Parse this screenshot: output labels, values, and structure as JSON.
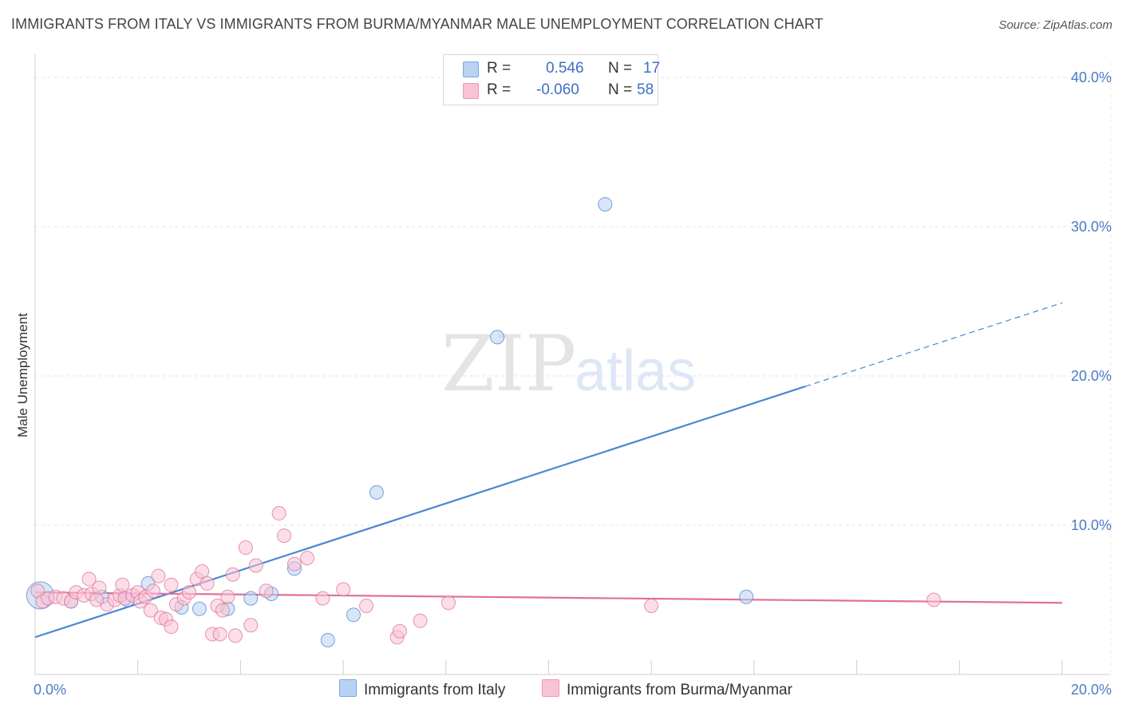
{
  "title": "IMMIGRANTS FROM ITALY VS IMMIGRANTS FROM BURMA/MYANMAR MALE UNEMPLOYMENT CORRELATION CHART",
  "source": "Source: ZipAtlas.com",
  "watermark": {
    "zip": "ZIP",
    "atlas": "atlas"
  },
  "legend": {
    "rows": [
      {
        "r_label": "R =",
        "r_value": "0.546",
        "n_label": "N =",
        "n_value": "17",
        "color": "#b8d2f3"
      },
      {
        "r_label": "R =",
        "r_value": "-0.060",
        "n_label": "N =",
        "n_value": "58",
        "color": "#f8c3d3"
      }
    ]
  },
  "bottom_legend": [
    {
      "label": "Immigrants from Italy",
      "color": "#b8d2f3"
    },
    {
      "label": "Immigrants from Burma/Myanmar",
      "color": "#f8c3d3"
    }
  ],
  "chart_data": {
    "type": "scatter",
    "title": "IMMIGRANTS FROM ITALY VS IMMIGRANTS FROM BURMA/MYANMAR MALE UNEMPLOYMENT CORRELATION CHART",
    "xlabel": "",
    "ylabel": "Male Unemployment",
    "xlim": [
      0,
      20
    ],
    "ylim": [
      0,
      40
    ],
    "x_tick_labels": [
      {
        "value": 0,
        "label": "0.0%"
      },
      {
        "value": 20,
        "label": "20.0%"
      }
    ],
    "y_tick_labels": [
      {
        "value": 10,
        "label": "10.0%"
      },
      {
        "value": 20,
        "label": "20.0%"
      },
      {
        "value": 30,
        "label": "30.0%"
      },
      {
        "value": 40,
        "label": "40.0%"
      }
    ],
    "grid": true,
    "series": [
      {
        "name": "Immigrants from Italy",
        "color": "#4a86d6",
        "fill": "#b8d2f3",
        "points": [
          [
            0.1,
            5.3
          ],
          [
            0.7,
            4.9
          ],
          [
            1.3,
            5.2
          ],
          [
            1.8,
            5.0
          ],
          [
            2.2,
            6.1
          ],
          [
            2.85,
            4.5
          ],
          [
            3.2,
            4.4
          ],
          [
            3.75,
            4.4
          ],
          [
            4.2,
            5.1
          ],
          [
            4.6,
            5.4
          ],
          [
            5.05,
            7.1
          ],
          [
            5.7,
            2.3
          ],
          [
            6.2,
            4.0
          ],
          [
            6.65,
            12.2
          ],
          [
            9.0,
            22.6
          ],
          [
            11.1,
            31.5
          ],
          [
            13.85,
            5.2
          ]
        ],
        "trend": {
          "x0": 0,
          "y0": 2.5,
          "x1": 15.0,
          "y1": 19.3,
          "x_dash_end": 20.0,
          "y_dash_end": 24.9
        }
      },
      {
        "name": "Immigrants from Burma/Myanmar",
        "color": "#e0709a",
        "fill": "#f8c3d3",
        "points": [
          [
            0.05,
            5.6
          ],
          [
            0.15,
            4.9
          ],
          [
            0.25,
            5.1
          ],
          [
            0.4,
            5.2
          ],
          [
            0.55,
            5.1
          ],
          [
            0.7,
            4.9
          ],
          [
            0.8,
            5.5
          ],
          [
            0.95,
            5.3
          ],
          [
            1.1,
            5.4
          ],
          [
            1.25,
            5.8
          ],
          [
            1.05,
            6.4
          ],
          [
            1.4,
            4.7
          ],
          [
            1.55,
            5.0
          ],
          [
            1.65,
            5.3
          ],
          [
            1.75,
            5.1
          ],
          [
            1.9,
            5.3
          ],
          [
            2.0,
            5.5
          ],
          [
            1.7,
            6.0
          ],
          [
            2.05,
            4.9
          ],
          [
            2.15,
            5.2
          ],
          [
            2.3,
            5.6
          ],
          [
            2.4,
            6.6
          ],
          [
            2.25,
            4.3
          ],
          [
            2.45,
            3.8
          ],
          [
            2.65,
            6.0
          ],
          [
            2.75,
            4.7
          ],
          [
            2.9,
            5.1
          ],
          [
            3.0,
            5.5
          ],
          [
            2.55,
            3.7
          ],
          [
            2.65,
            3.2
          ],
          [
            3.15,
            6.4
          ],
          [
            3.25,
            6.9
          ],
          [
            3.35,
            6.1
          ],
          [
            3.45,
            2.7
          ],
          [
            3.55,
            4.6
          ],
          [
            3.65,
            4.3
          ],
          [
            3.75,
            5.2
          ],
          [
            3.85,
            6.7
          ],
          [
            3.6,
            2.7
          ],
          [
            3.9,
            2.6
          ],
          [
            4.1,
            8.5
          ],
          [
            4.2,
            3.3
          ],
          [
            4.3,
            7.3
          ],
          [
            4.5,
            5.6
          ],
          [
            4.75,
            10.8
          ],
          [
            4.85,
            9.3
          ],
          [
            5.05,
            7.4
          ],
          [
            5.3,
            7.8
          ],
          [
            5.6,
            5.1
          ],
          [
            6.0,
            5.7
          ],
          [
            6.45,
            4.6
          ],
          [
            7.05,
            2.5
          ],
          [
            7.1,
            2.9
          ],
          [
            7.5,
            3.6
          ],
          [
            8.05,
            4.8
          ],
          [
            12.0,
            4.6
          ],
          [
            17.5,
            5.0
          ],
          [
            1.2,
            5.0
          ]
        ],
        "trend": {
          "x0": 0,
          "y0": 5.5,
          "x1": 20.0,
          "y1": 4.8
        }
      }
    ]
  }
}
